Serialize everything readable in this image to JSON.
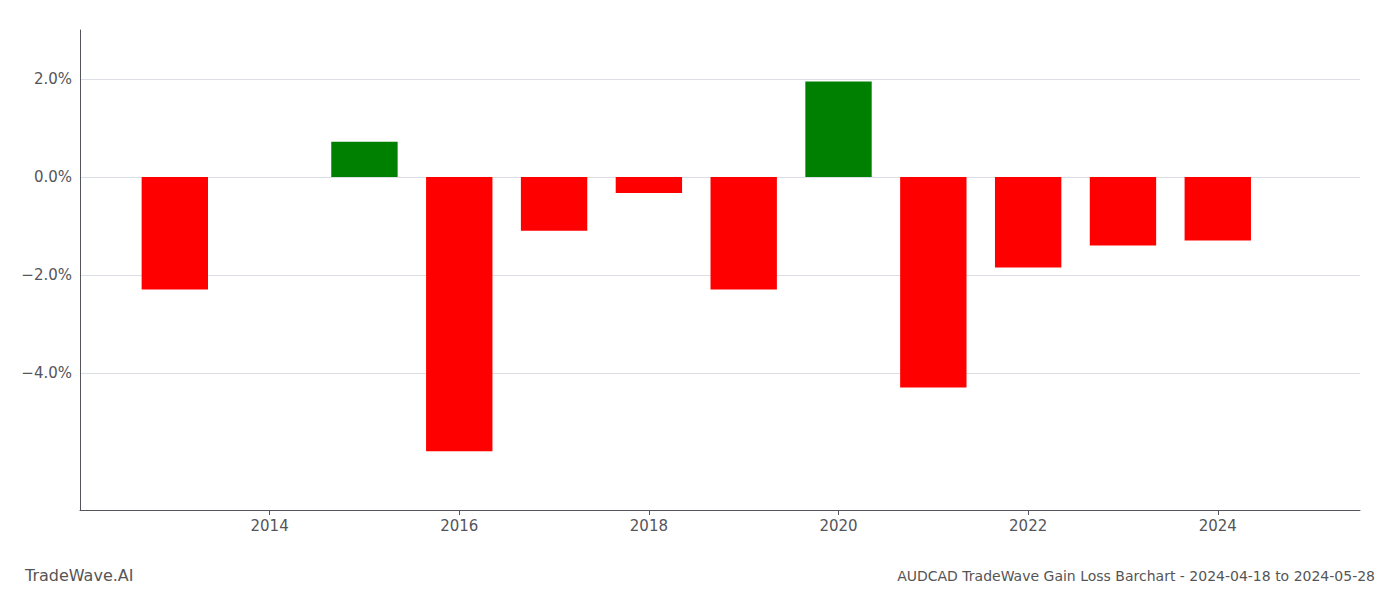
{
  "chart_data": {
    "type": "bar",
    "title": "AUDCAD TradeWave Gain Loss Barchart - 2024-04-18 to 2024-05-28",
    "annotations": [
      "TradeWave.AI"
    ],
    "x": [
      2013,
      2015,
      2016,
      2017,
      2018,
      2019,
      2020,
      2021,
      2022,
      2023,
      2024
    ],
    "values": [
      -0.023,
      0.0072,
      -0.056,
      -0.011,
      -0.0033,
      -0.023,
      0.0195,
      -0.043,
      -0.0185,
      -0.014,
      -0.013
    ],
    "colors": [
      "#ff0000",
      "#008000",
      "#ff0000",
      "#ff0000",
      "#ff0000",
      "#ff0000",
      "#008000",
      "#ff0000",
      "#ff0000",
      "#ff0000",
      "#ff0000"
    ],
    "xlim": [
      2012.0,
      2025.5
    ],
    "xticks": [
      2014,
      2016,
      2018,
      2020,
      2022,
      2024
    ],
    "ylim": [
      -0.068,
      0.03
    ],
    "yticks": [
      {
        "value": -0.04,
        "label": "−4.0%"
      },
      {
        "value": -0.02,
        "label": "−2.0%"
      },
      {
        "value": 0.0,
        "label": "0.0%"
      },
      {
        "value": 0.02,
        "label": "2.0%"
      }
    ],
    "grid": "y"
  }
}
